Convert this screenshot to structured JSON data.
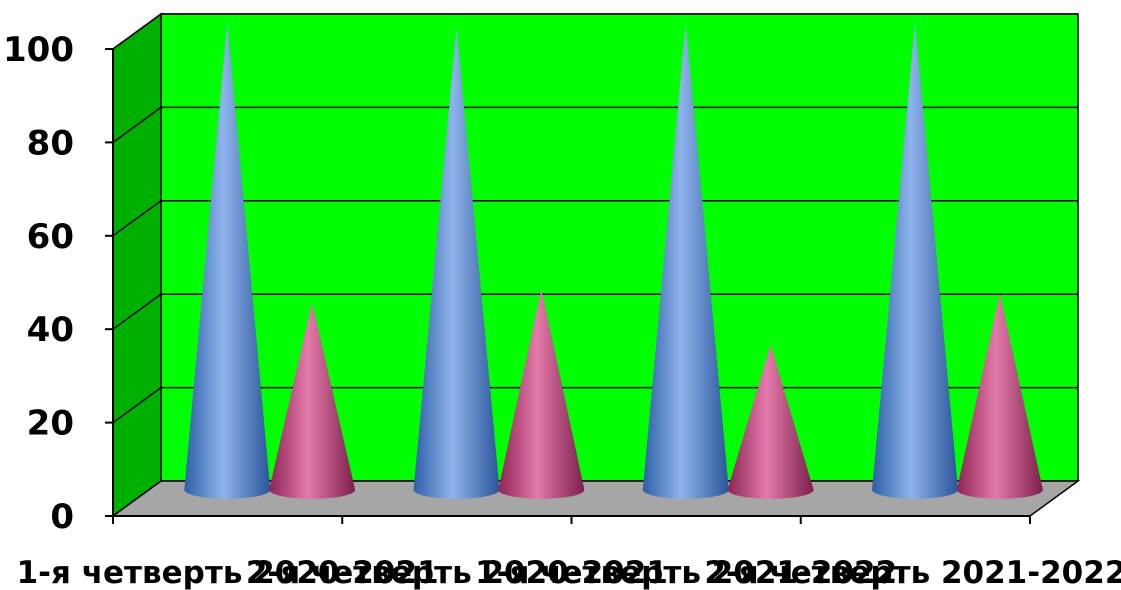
{
  "chart_data": {
    "type": "bar",
    "style": "3d-cone",
    "categories": [
      "1-я четверть 2020-2021",
      "2-я четверть 2020-2021",
      "1-я четверть 2021-2022",
      "2-я четверть 2021-2022"
    ],
    "series": [
      {
        "color": "#4f86d2",
        "values": [
          100,
          99,
          100,
          100
        ]
      },
      {
        "color": "#c8467e",
        "values": [
          40,
          43,
          31,
          42
        ]
      }
    ],
    "ylim": [
      0,
      100
    ],
    "yticks": [
      0,
      20,
      40,
      60,
      80,
      100
    ],
    "grid": true,
    "wall_color": "#00ff00",
    "side_wall_color": "#00b000",
    "floor_color": "#a6a6a6",
    "title": "",
    "xlabel": "",
    "ylabel": ""
  }
}
